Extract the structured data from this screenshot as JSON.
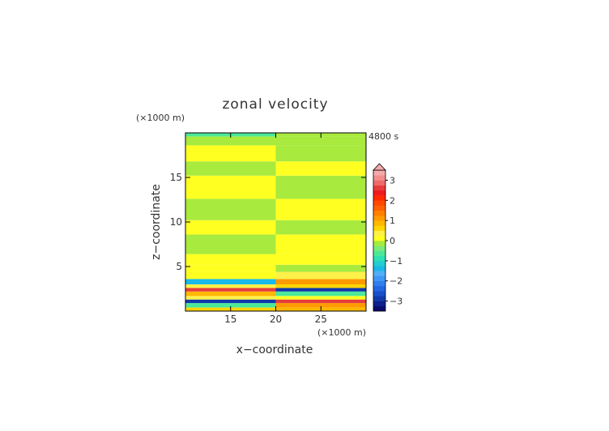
{
  "chart_data": {
    "type": "heatmap",
    "title": "zonal velocity",
    "xlabel": "x−coordinate",
    "ylabel": "z−coordinate",
    "x_unit": "(×1000 m)",
    "y_unit": "(×1000 m)",
    "time_label": "4800 s",
    "xlim": [
      10,
      30
    ],
    "ylim": [
      0,
      20
    ],
    "x_ticks": [
      15,
      20,
      25
    ],
    "y_ticks": [
      5,
      10,
      15
    ],
    "colorbar": {
      "levels": [
        -3.5,
        -3.25,
        -3,
        -2.75,
        -2.5,
        -2.25,
        -2,
        -1.75,
        -1.5,
        -1.25,
        -1,
        -0.75,
        -0.5,
        -0.25,
        0,
        0.25,
        0.5,
        0.75,
        1,
        1.25,
        1.5,
        1.75,
        2,
        2.25,
        2.5,
        2.75,
        3,
        3.25,
        3.5
      ],
      "tick_labels": [
        "−3",
        "−2",
        "−1",
        "0",
        "1",
        "2",
        "3"
      ],
      "tick_values": [
        -3,
        -2,
        -1,
        0,
        1,
        2,
        3
      ],
      "extend": "max",
      "colors": [
        "#0a0a6e",
        "#0d1f8c",
        "#1238aa",
        "#1a4fc8",
        "#2266e0",
        "#2f80ee",
        "#3f98f4",
        "#52aef6",
        "#19b8e8",
        "#23cdd0",
        "#2fe0b4",
        "#4ce89a",
        "#7cea78",
        "#a8ea3e",
        "#ffff22",
        "#fff04a",
        "#ffd400",
        "#ffb800",
        "#ff9a00",
        "#ff8000",
        "#ff6200",
        "#ff4a00",
        "#ff2a00",
        "#f01a1a",
        "#e63c3c",
        "#ef6a6a",
        "#f28e8e",
        "#f5aaaa"
      ]
    },
    "bands": [
      {
        "z0": 0.0,
        "z1": 0.4,
        "left": 0.6,
        "right": 0.9
      },
      {
        "z0": 0.4,
        "z1": 0.9,
        "left": -0.6,
        "right": 1.2
      },
      {
        "z0": 0.9,
        "z1": 1.3,
        "left": -3.0,
        "right": 2.6
      },
      {
        "z0": 1.3,
        "z1": 1.7,
        "left": 0.4,
        "right": 0.2
      },
      {
        "z0": 1.7,
        "z1": 2.2,
        "left": 0.8,
        "right": -0.6
      },
      {
        "z0": 2.2,
        "z1": 2.6,
        "left": 2.6,
        "right": -2.8
      },
      {
        "z0": 2.6,
        "z1": 3.0,
        "left": 0.3,
        "right": 0.6
      },
      {
        "z0": 3.0,
        "z1": 3.6,
        "left": -1.4,
        "right": 1.0
      },
      {
        "z0": 3.6,
        "z1": 4.4,
        "left": 0.2,
        "right": 0.4
      },
      {
        "z0": 4.4,
        "z1": 5.2,
        "left": 0.1,
        "right": -0.2
      },
      {
        "z0": 5.2,
        "z1": 6.4,
        "left": 0.15,
        "right": 0.15
      },
      {
        "z0": 6.4,
        "z1": 8.6,
        "left": -0.15,
        "right": 0.15
      },
      {
        "z0": 8.6,
        "z1": 10.2,
        "left": 0.15,
        "right": -0.15
      },
      {
        "z0": 10.2,
        "z1": 12.6,
        "left": -0.1,
        "right": 0.1
      },
      {
        "z0": 12.6,
        "z1": 15.2,
        "left": 0.1,
        "right": -0.1
      },
      {
        "z0": 15.2,
        "z1": 16.8,
        "left": -0.15,
        "right": 0.15
      },
      {
        "z0": 16.8,
        "z1": 18.6,
        "left": 0.15,
        "right": -0.15
      },
      {
        "z0": 18.6,
        "z1": 19.6,
        "left": -0.15,
        "right": -0.05
      },
      {
        "z0": 19.6,
        "z1": 20.0,
        "left": -0.6,
        "right": -0.1
      }
    ]
  }
}
